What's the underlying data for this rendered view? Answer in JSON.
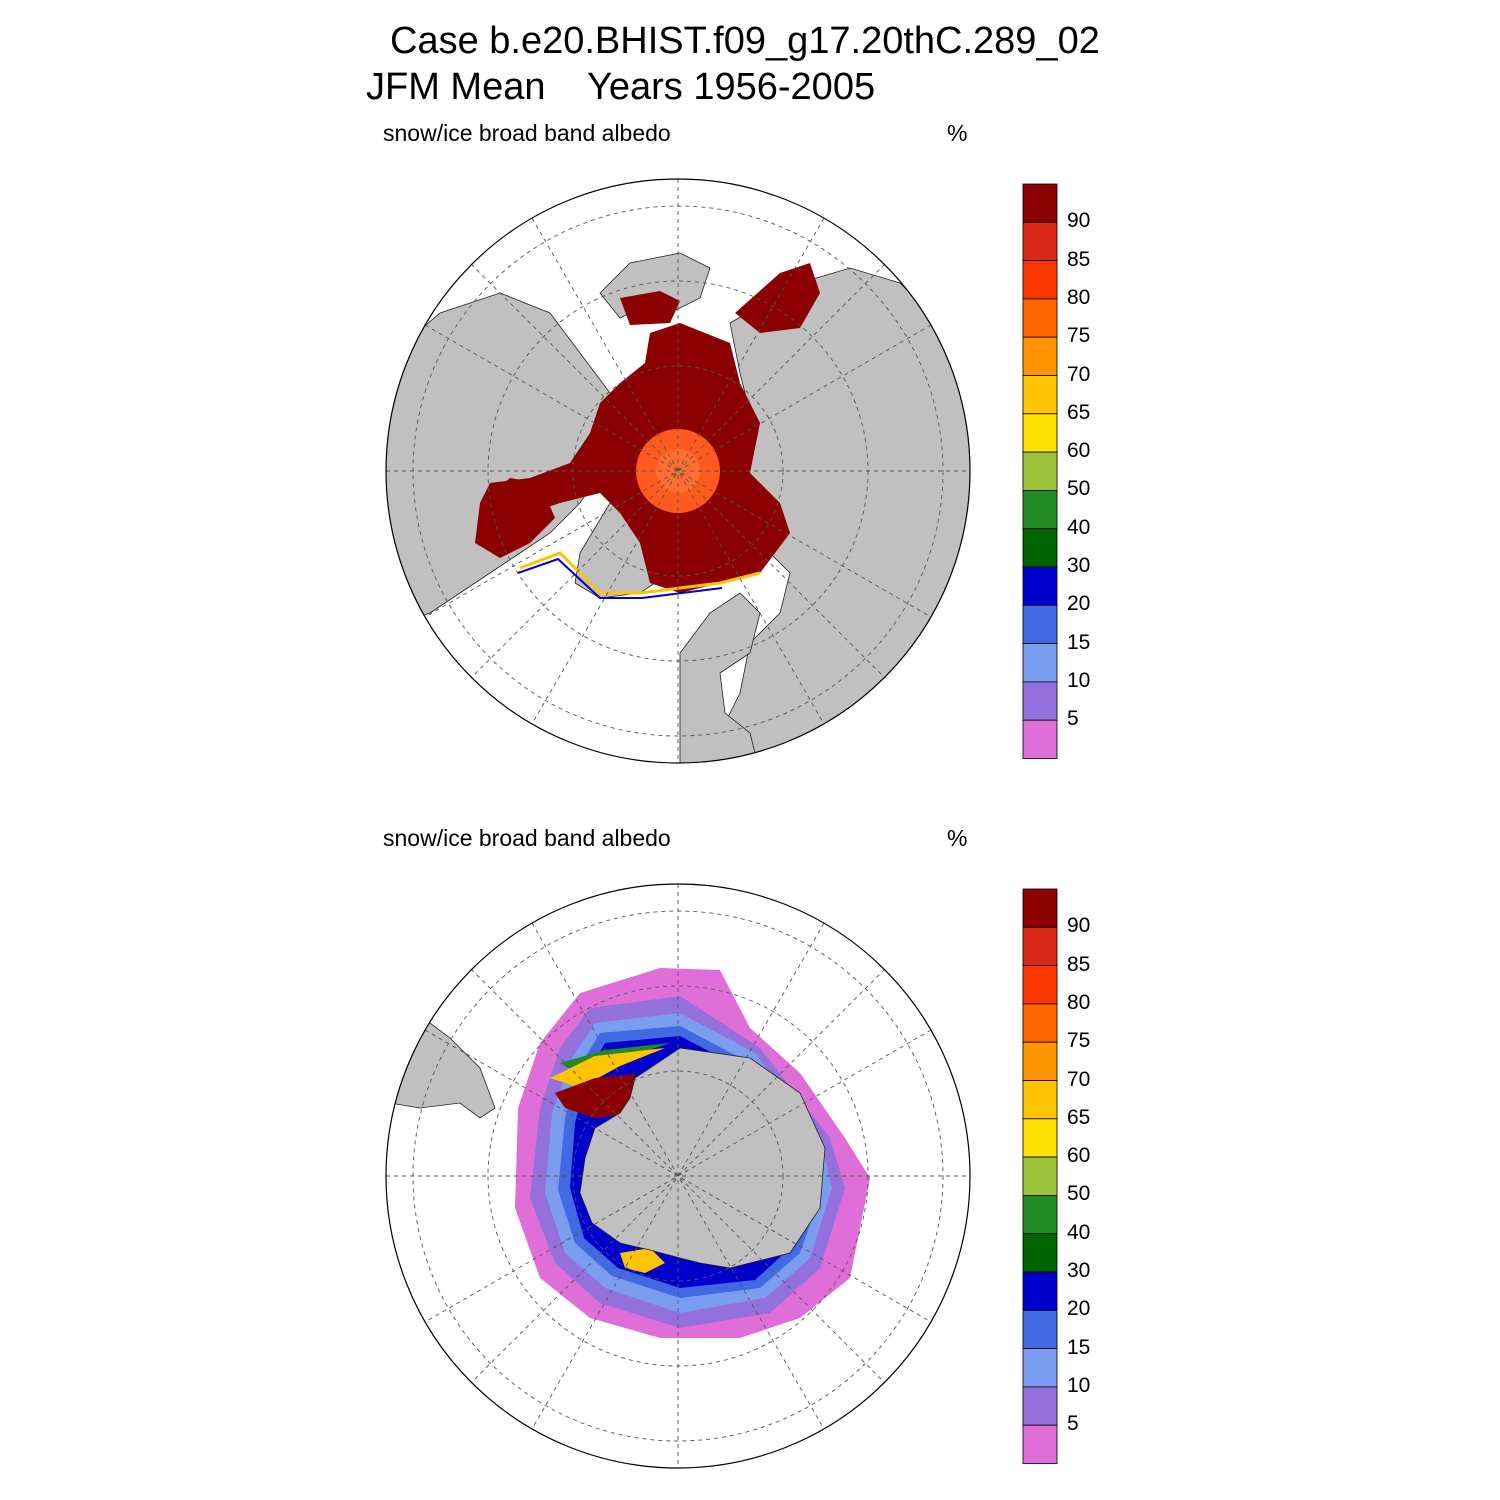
{
  "title": {
    "line1": "Case b.e20.BHIST.f09_g17.20thC.289_02",
    "line2": "JFM Mean    Years 1956-2005"
  },
  "colors": {
    "land": "#c0c0c0",
    "ocean": "#ffffff",
    "grid": "#555555"
  },
  "colorbar": {
    "tick_labels": [
      "90",
      "85",
      "80",
      "75",
      "70",
      "65",
      "60",
      "50",
      "40",
      "30",
      "20",
      "15",
      "10",
      "5"
    ],
    "colors_top_to_bottom": [
      "#8b0000",
      "#d7281a",
      "#ff3800",
      "#ff6400",
      "#ff9400",
      "#ffc400",
      "#ffe200",
      "#9cc23a",
      "#238b23",
      "#006400",
      "#0000cd",
      "#4169e1",
      "#7b9df0",
      "#9370db",
      "#e06ed8"
    ]
  },
  "panels": [
    {
      "id": "north",
      "variable": "snow/ice broad band albedo",
      "unit": "%",
      "hemisphere": "Northern",
      "projection": "polar stereographic"
    },
    {
      "id": "south",
      "variable": "snow/ice broad band albedo",
      "unit": "%",
      "hemisphere": "Southern",
      "projection": "polar stereographic"
    }
  ]
}
